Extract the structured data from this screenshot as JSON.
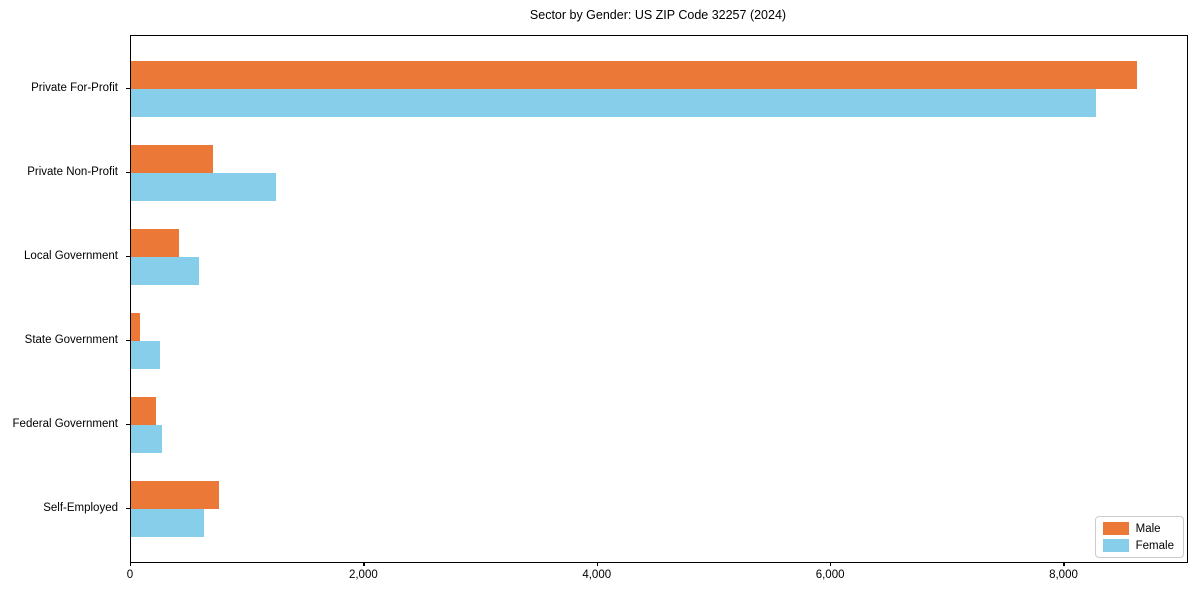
{
  "chart_data": {
    "type": "bar",
    "orientation": "horizontal",
    "title": "Sector by Gender: US ZIP Code 32257 (2024)",
    "xlabel": "",
    "ylabel": "",
    "categories": [
      "Private For-Profit",
      "Private Non-Profit",
      "Local Government",
      "State Government",
      "Federal Government",
      "Self-Employed"
    ],
    "series": [
      {
        "name": "Male",
        "color": "#EC7837",
        "values": [
          8620,
          705,
          415,
          80,
          215,
          750
        ]
      },
      {
        "name": "Female",
        "color": "#87CEEB",
        "values": [
          8270,
          1245,
          585,
          250,
          265,
          625
        ]
      }
    ],
    "xlim": [
      0,
      9050
    ],
    "xticks": [
      0,
      2000,
      4000,
      6000,
      8000
    ],
    "xtick_labels": [
      "0",
      "2,000",
      "4,000",
      "6,000",
      "8,000"
    ],
    "grid": false,
    "legend": {
      "position": "lower right",
      "entries": [
        "Male",
        "Female"
      ]
    }
  }
}
